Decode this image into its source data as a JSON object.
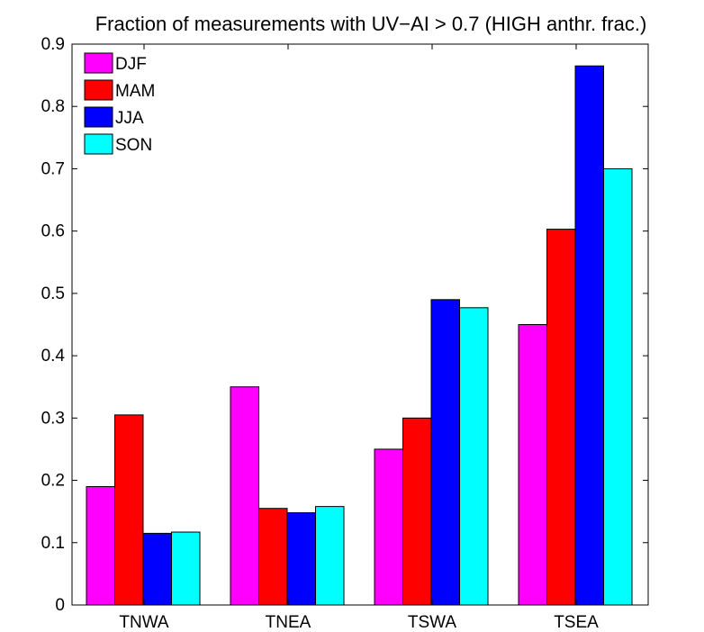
{
  "chart_data": {
    "type": "bar",
    "title": "Fraction of measurements with UV−AI > 0.7 (HIGH anthr. frac.)",
    "xlabel": "",
    "ylabel": "",
    "categories": [
      "TNWA",
      "TNEA",
      "TSWA",
      "TSEA"
    ],
    "ylim": [
      0,
      0.9
    ],
    "yticks": [
      "0",
      "0.1",
      "0.2",
      "0.3",
      "0.4",
      "0.5",
      "0.6",
      "0.7",
      "0.8",
      "0.9"
    ],
    "grid": false,
    "legend_position": "top-left",
    "series": [
      {
        "name": "DJF",
        "color": "#ff00ff",
        "values": [
          0.19,
          0.35,
          0.25,
          0.45
        ]
      },
      {
        "name": "MAM",
        "color": "#ff0000",
        "values": [
          0.305,
          0.155,
          0.3,
          0.603
        ]
      },
      {
        "name": "JJA",
        "color": "#0000ff",
        "values": [
          0.115,
          0.148,
          0.49,
          0.865
        ]
      },
      {
        "name": "SON",
        "color": "#00ffff",
        "values": [
          0.117,
          0.158,
          0.477,
          0.7
        ]
      }
    ]
  }
}
